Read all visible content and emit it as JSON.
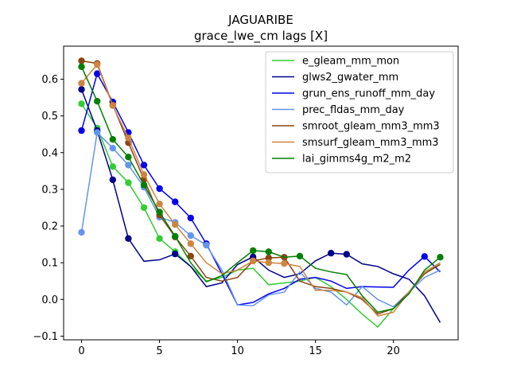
{
  "chart_data": {
    "type": "line",
    "title": "JAGUARIBE",
    "subtitle": "grace_lwe_cm lags [X]",
    "xlabel": "",
    "ylabel": "",
    "xlim": [
      -1.15,
      24.15
    ],
    "ylim": [
      -0.11,
      0.69
    ],
    "x_ticks": [
      0,
      5,
      10,
      15,
      20
    ],
    "y_ticks": [
      -0.1,
      0.0,
      0.1,
      0.2,
      0.3,
      0.4,
      0.5,
      0.6
    ],
    "y_tick_labels": [
      "−0.1",
      "0.0",
      "0.1",
      "0.2",
      "0.3",
      "0.4",
      "0.5",
      "0.6"
    ],
    "legend_position": "top-right",
    "grid": false,
    "x": [
      0,
      1,
      2,
      3,
      4,
      5,
      6,
      7,
      8,
      9,
      10,
      11,
      12,
      13,
      14,
      15,
      16,
      17,
      18,
      19,
      20,
      21,
      22,
      23
    ],
    "series": [
      {
        "name": "e_gleam_mm_mon",
        "color": "#32cd32",
        "values": [
          0.533,
          0.467,
          0.362,
          0.318,
          0.25,
          0.166,
          0.13,
          0.09,
          0.05,
          0.06,
          0.08,
          0.085,
          0.04,
          0.045,
          0.05,
          0.06,
          0.035,
          0.0,
          -0.04,
          -0.075,
          -0.025,
          0.02,
          0.07,
          0.1
        ],
        "markers": [
          0,
          1,
          2,
          3,
          4,
          5,
          6
        ]
      },
      {
        "name": "glws2_gwater_mm",
        "color": "#00008b",
        "values": [
          0.572,
          0.46,
          0.326,
          0.166,
          0.104,
          0.108,
          0.124,
          0.09,
          0.035,
          0.045,
          0.095,
          0.116,
          0.08,
          0.06,
          0.07,
          0.105,
          0.126,
          0.123,
          0.097,
          0.09,
          0.07,
          0.055,
          0.01,
          -0.063
        ],
        "markers": [
          0,
          1,
          2,
          3,
          6,
          11,
          16,
          17
        ]
      },
      {
        "name": "grun_ens_runoff_mm_day",
        "color": "#0000ee",
        "values": [
          0.46,
          0.615,
          0.538,
          0.455,
          0.366,
          0.302,
          0.266,
          0.222,
          0.152,
          0.07,
          -0.015,
          -0.008,
          0.015,
          0.03,
          0.055,
          0.06,
          0.05,
          0.03,
          0.035,
          0.034,
          0.033,
          0.08,
          0.117,
          0.075
        ],
        "markers": [
          0,
          1,
          2,
          3,
          4,
          5,
          6,
          7,
          8,
          22
        ]
      },
      {
        "name": "prec_fldas_mm_day",
        "color": "#6495ed",
        "values": [
          0.183,
          0.455,
          0.412,
          0.366,
          0.306,
          0.224,
          0.21,
          0.174,
          0.148,
          0.08,
          -0.015,
          -0.017,
          0.012,
          0.02,
          0.075,
          0.03,
          0.02,
          -0.015,
          0.035,
          0.0,
          -0.02,
          0.02,
          0.06,
          0.08
        ],
        "markers": [
          0,
          1,
          2,
          3,
          4,
          5,
          6,
          7,
          8
        ]
      },
      {
        "name": "smroot_gleam_mm3_mm3",
        "color": "#8b4513",
        "values": [
          0.65,
          0.643,
          0.53,
          0.427,
          0.327,
          0.23,
          0.17,
          0.118,
          0.06,
          0.05,
          0.06,
          0.105,
          0.113,
          0.115,
          0.05,
          0.035,
          0.03,
          0.02,
          0.0,
          -0.04,
          -0.025,
          0.02,
          0.07,
          0.095
        ],
        "markers": [
          0,
          1,
          2,
          3,
          4,
          5,
          6,
          7,
          11,
          12,
          13
        ]
      },
      {
        "name": "smsurf_gleam_mm3_mm3",
        "color": "#cd853f",
        "values": [
          0.589,
          0.64,
          0.528,
          0.44,
          0.34,
          0.26,
          0.204,
          0.152,
          0.1,
          0.07,
          0.08,
          0.105,
          0.1,
          0.098,
          0.09,
          0.025,
          0.025,
          0.02,
          0.005,
          -0.045,
          -0.035,
          0.02,
          0.075,
          0.1
        ],
        "markers": [
          0,
          1,
          2,
          3,
          4,
          5,
          6,
          7,
          11,
          12,
          13
        ]
      },
      {
        "name": "lai_gimms4g_m2_m2",
        "color": "#008000",
        "values": [
          0.634,
          0.54,
          0.436,
          0.388,
          0.312,
          0.238,
          0.172,
          0.1,
          0.048,
          0.065,
          0.1,
          0.133,
          0.13,
          0.115,
          0.118,
          0.085,
          0.075,
          0.068,
          0.01,
          -0.035,
          -0.025,
          0.015,
          0.08,
          0.115
        ],
        "markers": [
          0,
          1,
          2,
          3,
          4,
          5,
          6,
          11,
          12,
          14,
          23
        ]
      }
    ]
  }
}
